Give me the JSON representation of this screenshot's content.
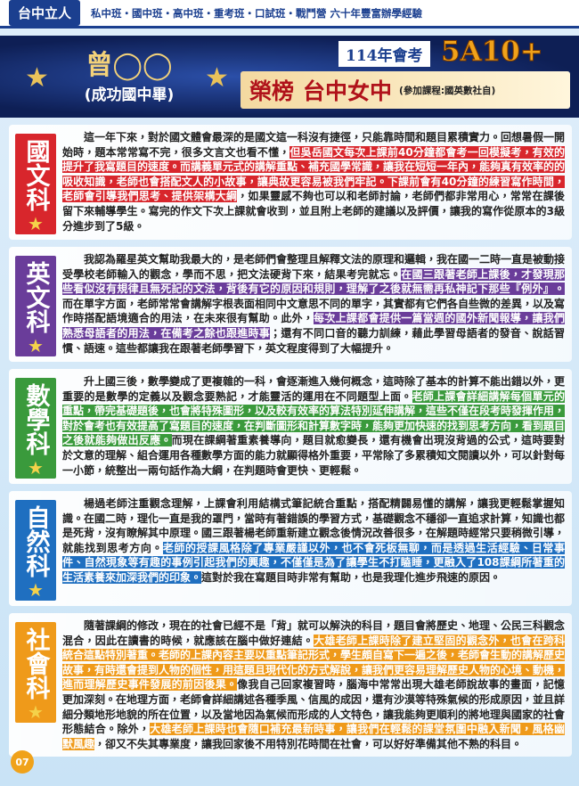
{
  "top_bar": {
    "logo": "台中立人",
    "tagline": "私中班・國中班・高中班・重考班・口試班・戰鬥營 六十年豐富辦學經驗"
  },
  "header": {
    "name": "曾◯◯",
    "school": "(成功國中畢)",
    "exam": "114年會考",
    "score": "5A10+",
    "honor": "榮榜",
    "target": "台中女中",
    "courses": "(參加課程:國英數社自)"
  },
  "sections": [
    {
      "subject": "國文科",
      "color": "#d8262c",
      "paragraph": [
        {
          "text": "這一年下來，對於國文體會最深的是國文這一科沒有捷徑，只能靠時間和題目累積實力。回想暑假一開始時，題本常常寫不完，很多文言文也看不懂，",
          "highlight": false
        },
        {
          "text": "但吳岳國文每次上課前40分鐘都會考一回模擬考，有效的提升了我寫題目的速度。而講義單元式的講解重點、補充國學常識，讓我在短短一年內，能夠真有效率的的吸收知識，老師也會搭配文人的小故事，讓典故更容易被我們牢記。下課前會有40分鐘的練習寫作時間，老師會引導我們思考、提供架構大綱",
          "highlight": true
        },
        {
          "text": "，如果靈感不夠也可以和老師討論，老師們都非常用心，常常在課後留下來輔導學生。寫完的作文下次上課就會收到，並且附上老師的建議以及評價，讓我的寫作從原本的3級分進步到了5級。",
          "highlight": false
        }
      ]
    },
    {
      "subject": "英文科",
      "color": "#6a3d9a",
      "paragraph": [
        {
          "text": "我認為羅星英文幫助我最大的，是老師們會整理且解釋文法的原理和邏輯，我在國一二時一直是被動接受學校老師輸入的觀念，學而不思，把文法硬背下來，結果考完就忘。",
          "highlight": false
        },
        {
          "text": "在國三跟著老師上課後，才發現那些看似沒有規律且無死記的文法，背後有它的原因和規則，理解了之後就無需再私神記下那些『例外』。",
          "highlight": true
        },
        {
          "text": "而在單字方面，老師常常會講解字根表面相同中文意思不同的單字，其實都有它們各自些微的差異，以及寫作時搭配語境適合的用法，在未來很有幫助。此外，",
          "highlight": false
        },
        {
          "text": "每次上課都會提供一篇當週的國外新聞報導，讓我們熟悉母語者的用法，在備考之餘也跟進時事",
          "highlight": true
        },
        {
          "text": "；還有不同口音的聽力訓練，藉此學習母語者的發音、說話習慣、語速。這些都讓我在跟著老師學習下，英文程度得到了大幅提升。",
          "highlight": false
        }
      ]
    },
    {
      "subject": "數學科",
      "color": "#3a9a3c",
      "paragraph": [
        {
          "text": "升上國三後，數學變成了更複雜的一科，會逐漸進入幾何概念，這時除了基本的計算不能出錯以外，更重要的是數學的定義以及觀念要熟記，才能靈活的運用在不同題型上面。",
          "highlight": false
        },
        {
          "text": "老師上課會詳細講解每個單元的重點，帶完基礎題後，也會將特殊圖形，以及較有效率的算法特別延伸講解，這些不僅在段考時發揮作用，對於會考也有效提高了寫題目的速度，在判斷圖形和計算數字時，能夠更加快速的找到思考方向，看到題目之後就能夠做出反應。",
          "highlight": true
        },
        {
          "text": "而現在課綱著重素養導向，題目就愈變長，還有機會出現沒背過的公式，這時要對於文意的理解、組合運用各種數學方面的能力就顯得格外重要，平常除了多累積知文閱讀以外，可以針對每一小節，統整出一兩句話作為大綱，在判題時會更快、更輕鬆。",
          "highlight": false
        }
      ]
    },
    {
      "subject": "自然科",
      "color": "#1f6fc0",
      "paragraph": [
        {
          "text": "楊過老師注重觀念理解，上課會利用結構式筆記統合重點，搭配精闢易懂的講解，讓我更輕鬆掌握知識。在國二時，理化一直是我的罩門，當時有著錯誤的學習方式，基礎觀念不穩卻一直追求計算，知識也都是死背，沒有瞭解其中原理。國三跟著楊老師重新建立觀念後情況改善很多，在解題時經常只要稍微引導，就能找到思考方向。",
          "highlight": false
        },
        {
          "text": "老師的授課風格除了專業嚴謹以外，也不會死板無聊，而是透過生活經驗、日常事件、自然現象等有趣的事例引起我們的興趣，不僅僅是為了讓學生不打瞌睡，更融入了108課綱所著重的生活素養來加深我們的印象。",
          "highlight": true
        },
        {
          "text": "這對於我在寫題目時非常有幫助，也是我理化進步飛速的原因。",
          "highlight": false
        }
      ]
    },
    {
      "subject": "社會科",
      "color": "#ef9a1a",
      "paragraph": [
        {
          "text": "隨著課綱的修改，現在的社會已經不是「背」就可以解決的科目，題目會將歷史、地理、公民三科觀念混合，因此在讀書的時候，就應該在腦中做好連結。",
          "highlight": false
        },
        {
          "text": "大雄老師上課時除了建立堅固的觀念外，也會在跨科統合這點特別著重。老師的上課內容主要以重點筆記形式，學生頗自寫下一遍之後，老師會生動的講解歷史故事，有時還會提到人物的個性，用這題且現代化的方式解說，讓我們更容易理解歷史人物的心境、動機，進而理解歷史事件發展的前因後果。",
          "highlight": true
        },
        {
          "text": "像我自己回家複習時，腦海中常常出現大雄老師說故事的畫面，記憶更加深刻。在地理方面，老師會詳細講述各種季風、信風的成因，還有沙漠等特殊氣候的形成原因，並且詳細分類地形地貌的所在位置，以及當地因為氣候而形成的人文特色，讓我能夠更順利的將地理與國家的社會形態結合。除外，",
          "highlight": false
        },
        {
          "text": "大雄老師上課時也會隨口補充最新時事，讓我們在輕鬆的課堂氛圍中融入新聞，風格幽默風趣",
          "highlight": true
        },
        {
          "text": "，卻又不失其專業度，讓我回家後不用特別花時間在社會，可以好好準備其他不熟的科目。",
          "highlight": false
        }
      ]
    }
  ],
  "page_number": "07"
}
